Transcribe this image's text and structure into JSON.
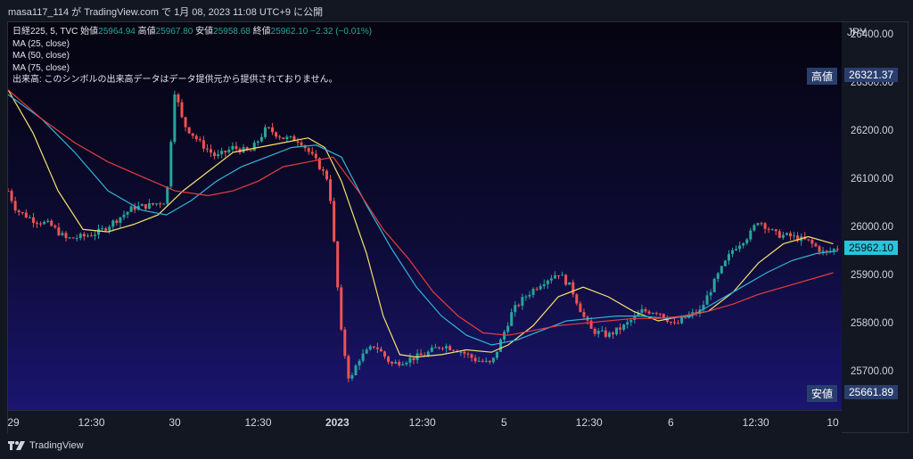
{
  "header": {
    "credit": "masa117_114 が TradingView.com で 1月 08, 2023 11:08 UTC+9 に公開"
  },
  "legend": {
    "symbol": "日経225, 5, TVC",
    "open_label": "始値",
    "open": "25964.94",
    "high_label": "高値",
    "high": "25967.80",
    "low_label": "安値",
    "low": "25958.68",
    "close_label": "終値",
    "close": "25962.10",
    "change": "−2.32 (−0.01%)",
    "ma25": "MA (25, close)",
    "ma50": "MA (50, close)",
    "ma75": "MA (75, close)",
    "volume_note": "出来高: このシンボルの出来高データはデータ提供元から提供されておりません。"
  },
  "axis": {
    "currency": "JPY"
  },
  "tags": {
    "high_label": "高値",
    "high_value": "26321.37",
    "low_label": "安値",
    "low_value": "25661.89",
    "last_value": "25962.10"
  },
  "footer": {
    "brand": "TradingView"
  },
  "colors": {
    "up": "#26a69a",
    "down": "#ef5350",
    "ma25": "#f7e26b",
    "ma50": "#31b4d8",
    "ma75": "#e83c3c"
  },
  "chart_data": {
    "type": "line",
    "y_ticks": [
      "26400.00",
      "26300.00",
      "26200.00",
      "26100.00",
      "26000.00",
      "25900.00",
      "25800.00",
      "25700.00"
    ],
    "y_range": [
      25625,
      26430
    ],
    "x_ticks": [
      {
        "label": "29",
        "pos": 0.0
      },
      {
        "label": "12:30",
        "pos": 0.1
      },
      {
        "label": "30",
        "pos": 0.2
      },
      {
        "label": "12:30",
        "pos": 0.3
      },
      {
        "label": "2023",
        "pos": 0.395,
        "bold": true
      },
      {
        "label": "12:30",
        "pos": 0.497
      },
      {
        "label": "5",
        "pos": 0.595
      },
      {
        "label": "12:30",
        "pos": 0.697
      },
      {
        "label": "6",
        "pos": 0.795
      },
      {
        "label": "12:30",
        "pos": 0.897
      },
      {
        "label": "10",
        "pos": 0.995
      }
    ],
    "price_path": [
      [
        0.0,
        26080
      ],
      [
        0.01,
        26040
      ],
      [
        0.03,
        26020
      ],
      [
        0.05,
        26010
      ],
      [
        0.07,
        25980
      ],
      [
        0.09,
        25985
      ],
      [
        0.11,
        25995
      ],
      [
        0.13,
        26020
      ],
      [
        0.15,
        26045
      ],
      [
        0.17,
        26050
      ],
      [
        0.19,
        26060
      ],
      [
        0.2,
        26290
      ],
      [
        0.21,
        26220
      ],
      [
        0.23,
        26180
      ],
      [
        0.25,
        26150
      ],
      [
        0.27,
        26170
      ],
      [
        0.29,
        26160
      ],
      [
        0.31,
        26210
      ],
      [
        0.33,
        26190
      ],
      [
        0.35,
        26185
      ],
      [
        0.37,
        26140
      ],
      [
        0.385,
        26100
      ],
      [
        0.4,
        25780
      ],
      [
        0.41,
        25680
      ],
      [
        0.42,
        25730
      ],
      [
        0.44,
        25760
      ],
      [
        0.46,
        25720
      ],
      [
        0.48,
        25730
      ],
      [
        0.5,
        25740
      ],
      [
        0.52,
        25760
      ],
      [
        0.54,
        25750
      ],
      [
        0.56,
        25730
      ],
      [
        0.58,
        25720
      ],
      [
        0.605,
        25830
      ],
      [
        0.62,
        25860
      ],
      [
        0.64,
        25890
      ],
      [
        0.66,
        25910
      ],
      [
        0.675,
        25880
      ],
      [
        0.69,
        25820
      ],
      [
        0.7,
        25790
      ],
      [
        0.72,
        25780
      ],
      [
        0.74,
        25800
      ],
      [
        0.76,
        25830
      ],
      [
        0.78,
        25830
      ],
      [
        0.8,
        25800
      ],
      [
        0.815,
        25820
      ],
      [
        0.83,
        25830
      ],
      [
        0.85,
        25900
      ],
      [
        0.87,
        25960
      ],
      [
        0.89,
        25990
      ],
      [
        0.9,
        26020
      ],
      [
        0.92,
        25990
      ],
      [
        0.94,
        25985
      ],
      [
        0.96,
        25975
      ],
      [
        0.98,
        25950
      ],
      [
        0.995,
        25962.1
      ]
    ],
    "series": [
      {
        "name": "MA (25, close)",
        "values": [
          [
            0.0,
            26290
          ],
          [
            0.03,
            26200
          ],
          [
            0.06,
            26080
          ],
          [
            0.09,
            26000
          ],
          [
            0.12,
            25995
          ],
          [
            0.15,
            26010
          ],
          [
            0.18,
            26030
          ],
          [
            0.21,
            26080
          ],
          [
            0.24,
            26120
          ],
          [
            0.27,
            26160
          ],
          [
            0.3,
            26170
          ],
          [
            0.33,
            26180
          ],
          [
            0.36,
            26190
          ],
          [
            0.38,
            26170
          ],
          [
            0.4,
            26100
          ],
          [
            0.43,
            25950
          ],
          [
            0.45,
            25820
          ],
          [
            0.47,
            25740
          ],
          [
            0.49,
            25735
          ],
          [
            0.52,
            25740
          ],
          [
            0.55,
            25750
          ],
          [
            0.58,
            25745
          ],
          [
            0.6,
            25760
          ],
          [
            0.63,
            25800
          ],
          [
            0.66,
            25860
          ],
          [
            0.69,
            25880
          ],
          [
            0.72,
            25860
          ],
          [
            0.75,
            25830
          ],
          [
            0.78,
            25810
          ],
          [
            0.81,
            25820
          ],
          [
            0.84,
            25830
          ],
          [
            0.87,
            25870
          ],
          [
            0.9,
            25930
          ],
          [
            0.93,
            25970
          ],
          [
            0.96,
            25985
          ],
          [
            0.99,
            25970
          ]
        ]
      },
      {
        "name": "MA (50, close)",
        "values": [
          [
            0.0,
            26280
          ],
          [
            0.04,
            26230
          ],
          [
            0.08,
            26160
          ],
          [
            0.12,
            26080
          ],
          [
            0.16,
            26040
          ],
          [
            0.19,
            26030
          ],
          [
            0.22,
            26060
          ],
          [
            0.25,
            26100
          ],
          [
            0.28,
            26130
          ],
          [
            0.31,
            26150
          ],
          [
            0.34,
            26170
          ],
          [
            0.37,
            26175
          ],
          [
            0.4,
            26150
          ],
          [
            0.43,
            26050
          ],
          [
            0.46,
            25960
          ],
          [
            0.49,
            25880
          ],
          [
            0.52,
            25820
          ],
          [
            0.55,
            25780
          ],
          [
            0.58,
            25760
          ],
          [
            0.61,
            25770
          ],
          [
            0.64,
            25790
          ],
          [
            0.67,
            25810
          ],
          [
            0.7,
            25815
          ],
          [
            0.73,
            25820
          ],
          [
            0.76,
            25820
          ],
          [
            0.79,
            25815
          ],
          [
            0.82,
            25820
          ],
          [
            0.85,
            25850
          ],
          [
            0.88,
            25880
          ],
          [
            0.91,
            25910
          ],
          [
            0.94,
            25935
          ],
          [
            0.97,
            25950
          ],
          [
            0.995,
            25955
          ]
        ]
      },
      {
        "name": "MA (75, close)",
        "values": [
          [
            0.0,
            26290
          ],
          [
            0.04,
            26230
          ],
          [
            0.08,
            26180
          ],
          [
            0.12,
            26140
          ],
          [
            0.16,
            26110
          ],
          [
            0.2,
            26080
          ],
          [
            0.24,
            26070
          ],
          [
            0.27,
            26080
          ],
          [
            0.3,
            26100
          ],
          [
            0.33,
            26130
          ],
          [
            0.36,
            26140
          ],
          [
            0.39,
            26150
          ],
          [
            0.42,
            26080
          ],
          [
            0.45,
            26000
          ],
          [
            0.48,
            25940
          ],
          [
            0.51,
            25870
          ],
          [
            0.54,
            25820
          ],
          [
            0.57,
            25785
          ],
          [
            0.6,
            25780
          ],
          [
            0.63,
            25790
          ],
          [
            0.66,
            25800
          ],
          [
            0.69,
            25805
          ],
          [
            0.72,
            25810
          ],
          [
            0.75,
            25815
          ],
          [
            0.78,
            25815
          ],
          [
            0.81,
            25820
          ],
          [
            0.84,
            25830
          ],
          [
            0.87,
            25845
          ],
          [
            0.9,
            25865
          ],
          [
            0.93,
            25880
          ],
          [
            0.96,
            25895
          ],
          [
            0.99,
            25910
          ]
        ]
      }
    ]
  }
}
